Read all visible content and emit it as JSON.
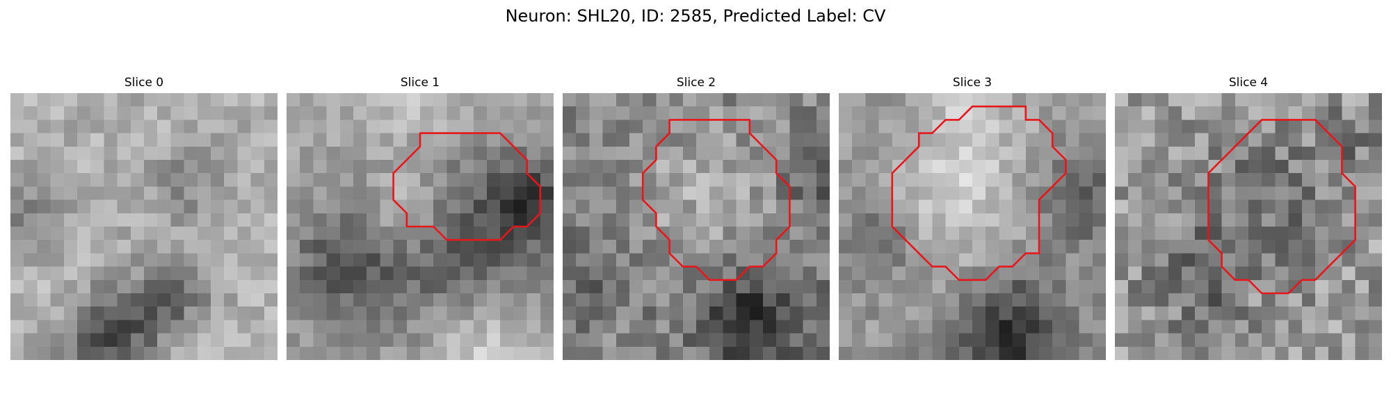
{
  "figure": {
    "title": "Neuron: SHL20, ID: 2585, Predicted Label: CV"
  },
  "panels": [
    {
      "title": "Slice 0",
      "contour": []
    },
    {
      "title": "Slice 1",
      "contour": [
        [
          11,
          3
        ],
        [
          16,
          3
        ],
        [
          18,
          5
        ],
        [
          18,
          6
        ],
        [
          19,
          7
        ],
        [
          19,
          9
        ],
        [
          18,
          10
        ],
        [
          17,
          10
        ],
        [
          16,
          11
        ],
        [
          12,
          11
        ],
        [
          11,
          10
        ],
        [
          9,
          10
        ],
        [
          9,
          9
        ],
        [
          8,
          8
        ],
        [
          8,
          6
        ],
        [
          9,
          5
        ],
        [
          10,
          4
        ],
        [
          10,
          3
        ]
      ]
    },
    {
      "title": "Slice 2",
      "contour": [
        [
          11,
          2
        ],
        [
          14,
          2
        ],
        [
          14,
          3
        ],
        [
          16,
          5
        ],
        [
          16,
          6
        ],
        [
          17,
          7
        ],
        [
          17,
          10
        ],
        [
          16,
          11
        ],
        [
          16,
          12
        ],
        [
          15,
          13
        ],
        [
          14,
          13
        ],
        [
          13,
          14
        ],
        [
          11,
          14
        ],
        [
          10,
          13
        ],
        [
          9,
          13
        ],
        [
          8,
          12
        ],
        [
          8,
          11
        ],
        [
          7,
          10
        ],
        [
          7,
          9
        ],
        [
          6,
          8
        ],
        [
          6,
          6
        ],
        [
          7,
          5
        ],
        [
          7,
          4
        ],
        [
          8,
          3
        ],
        [
          8,
          2
        ]
      ]
    },
    {
      "title": "Slice 3",
      "contour": [
        [
          10,
          1
        ],
        [
          14,
          1
        ],
        [
          14,
          2
        ],
        [
          15,
          2
        ],
        [
          16,
          3
        ],
        [
          16,
          4
        ],
        [
          17,
          5
        ],
        [
          17,
          6
        ],
        [
          16,
          7
        ],
        [
          15,
          8
        ],
        [
          15,
          12
        ],
        [
          14,
          12
        ],
        [
          13,
          13
        ],
        [
          12,
          13
        ],
        [
          11,
          14
        ],
        [
          9,
          14
        ],
        [
          8,
          13
        ],
        [
          7,
          13
        ],
        [
          6,
          12
        ],
        [
          5,
          11
        ],
        [
          4,
          10
        ],
        [
          4,
          6
        ],
        [
          5,
          5
        ],
        [
          6,
          4
        ],
        [
          6,
          3
        ],
        [
          7,
          3
        ],
        [
          8,
          2
        ],
        [
          9,
          2
        ],
        [
          10,
          1
        ]
      ]
    },
    {
      "title": "Slice 4",
      "contour": [
        [
          12,
          2
        ],
        [
          15,
          2
        ],
        [
          16,
          3
        ],
        [
          17,
          4
        ],
        [
          17,
          6
        ],
        [
          18,
          7
        ],
        [
          18,
          11
        ],
        [
          17,
          12
        ],
        [
          16,
          13
        ],
        [
          15,
          14
        ],
        [
          14,
          14
        ],
        [
          13,
          15
        ],
        [
          11,
          15
        ],
        [
          10,
          14
        ],
        [
          9,
          14
        ],
        [
          8,
          13
        ],
        [
          8,
          12
        ],
        [
          7,
          11
        ],
        [
          7,
          6
        ],
        [
          8,
          5
        ],
        [
          9,
          4
        ],
        [
          10,
          3
        ],
        [
          11,
          2
        ]
      ]
    }
  ],
  "colors": {
    "contour": "#e8161b",
    "background": "#ffffff"
  }
}
